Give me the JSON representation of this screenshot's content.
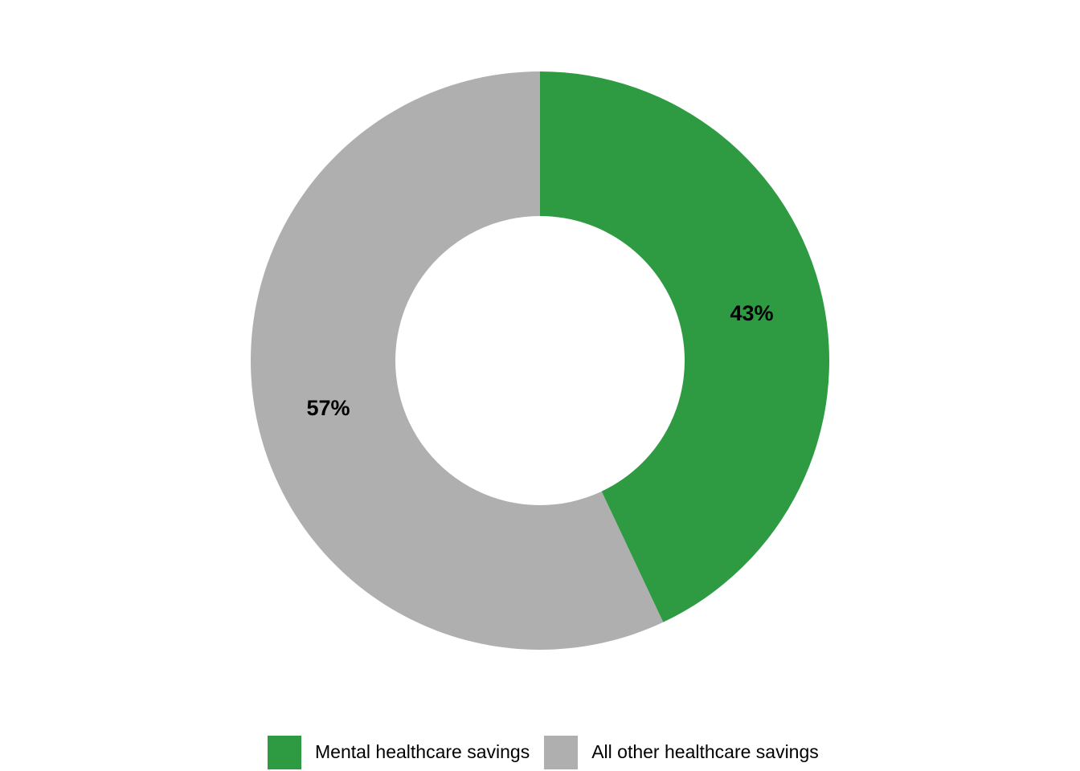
{
  "chart_data": {
    "type": "pie",
    "variant": "donut",
    "title": "",
    "categories": [
      "Mental healthcare savings",
      "All other healthcare savings"
    ],
    "values": [
      43,
      57
    ],
    "labels": [
      "43%",
      "57%"
    ],
    "colors": [
      "#2e9b43",
      "#afafaf"
    ],
    "legend_position": "bottom"
  }
}
